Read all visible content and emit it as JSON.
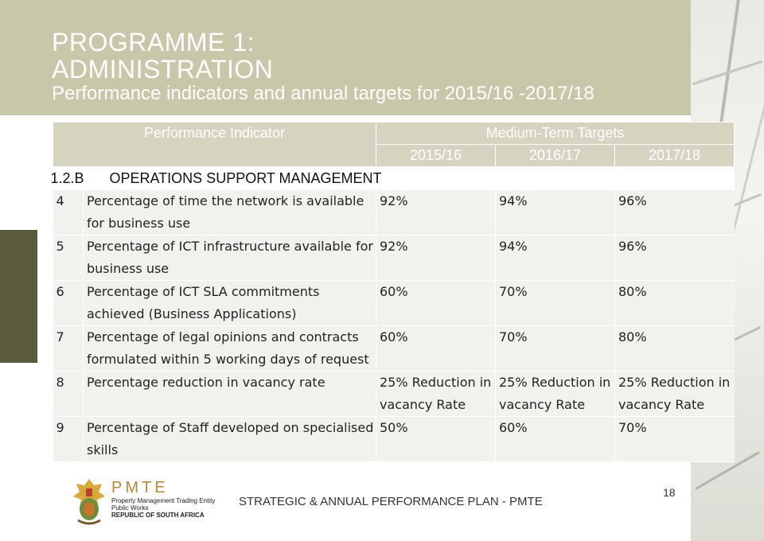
{
  "header": {
    "title_line1": "PROGRAMME 1:",
    "title_line2": "ADMINISTRATION",
    "subtitle": "Performance indicators and annual targets for 2015/16 -2017/18"
  },
  "table": {
    "header_indicator": "Performance Indicator",
    "header_targets": "Medium-Term Targets",
    "years": [
      "2015/16",
      "2016/17",
      "2017/18"
    ],
    "section": {
      "code": "1.2.B",
      "title": "OPERATIONS SUPPORT MANAGEMENT"
    },
    "rows": [
      {
        "num": "4",
        "indicator": "Percentage of time the network is available for business use",
        "t1": "92%",
        "t2": "94%",
        "t3": "96%"
      },
      {
        "num": "5",
        "indicator": "Percentage of ICT infrastructure available for business use",
        "t1": "92%",
        "t2": "94%",
        "t3": "96%"
      },
      {
        "num": "6",
        "indicator": "Percentage of ICT SLA commitments achieved (Business Applications)",
        "t1": "60%",
        "t2": "70%",
        "t3": "80%"
      },
      {
        "num": "7",
        "indicator": "Percentage of legal opinions and contracts formulated within 5 working days of request",
        "t1": "60%",
        "t2": "70%",
        "t3": "80%"
      },
      {
        "num": "8",
        "indicator": "Percentage reduction in vacancy rate",
        "t1": "25% Reduction in vacancy Rate",
        "t2": "25% Reduction in vacancy Rate",
        "t3": "25% Reduction in vacancy Rate"
      },
      {
        "num": "9",
        "indicator": "Percentage of Staff developed on specialised skills",
        "t1": "50%",
        "t2": "60%",
        "t3": "70%"
      }
    ]
  },
  "footer": {
    "text": "STRATEGIC & ANNUAL PERFORMANCE PLAN - PMTE",
    "page_number": "18"
  },
  "logo": {
    "name": "PMTE",
    "line1": "Property Management Trading Entity",
    "line2": "Public Works",
    "line3": "REPUBLIC OF SOUTH AFRICA"
  },
  "colors": {
    "header_band": "#c9c7a9",
    "side_bar": "#5b5a3f",
    "table_header": "#d6d3c1",
    "row_background": "#f2f1ee"
  }
}
